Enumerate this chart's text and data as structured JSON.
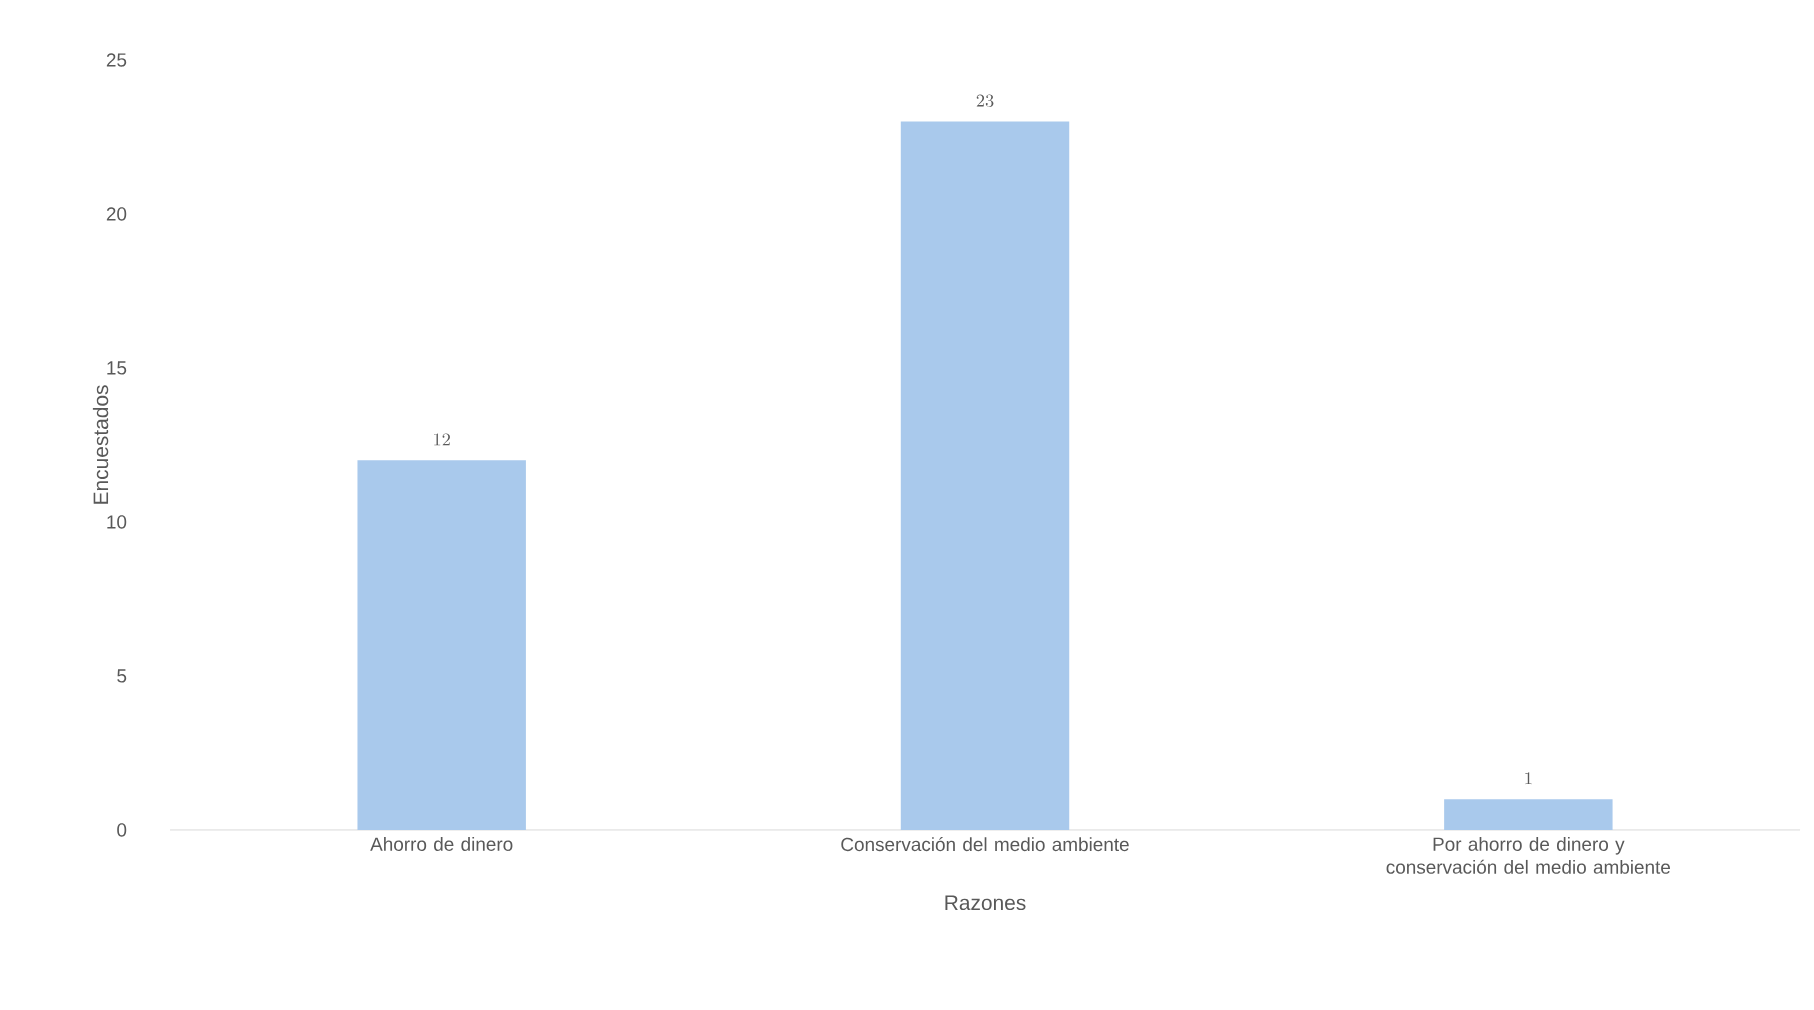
{
  "chart_data": {
    "type": "bar",
    "xlabel": "Razones",
    "ylabel": "Encuestados",
    "categories": [
      "Ahorro de dinero",
      "Conservación del medio ambiente",
      "Por ahorro de dinero y conservación del medio ambiente"
    ],
    "values": [
      12,
      23,
      1
    ],
    "color": "#a9c9ec",
    "ylim": [
      0,
      25
    ],
    "yticks": [
      0,
      5,
      10,
      15,
      20,
      25
    ],
    "grid": false,
    "data_labels": true
  }
}
